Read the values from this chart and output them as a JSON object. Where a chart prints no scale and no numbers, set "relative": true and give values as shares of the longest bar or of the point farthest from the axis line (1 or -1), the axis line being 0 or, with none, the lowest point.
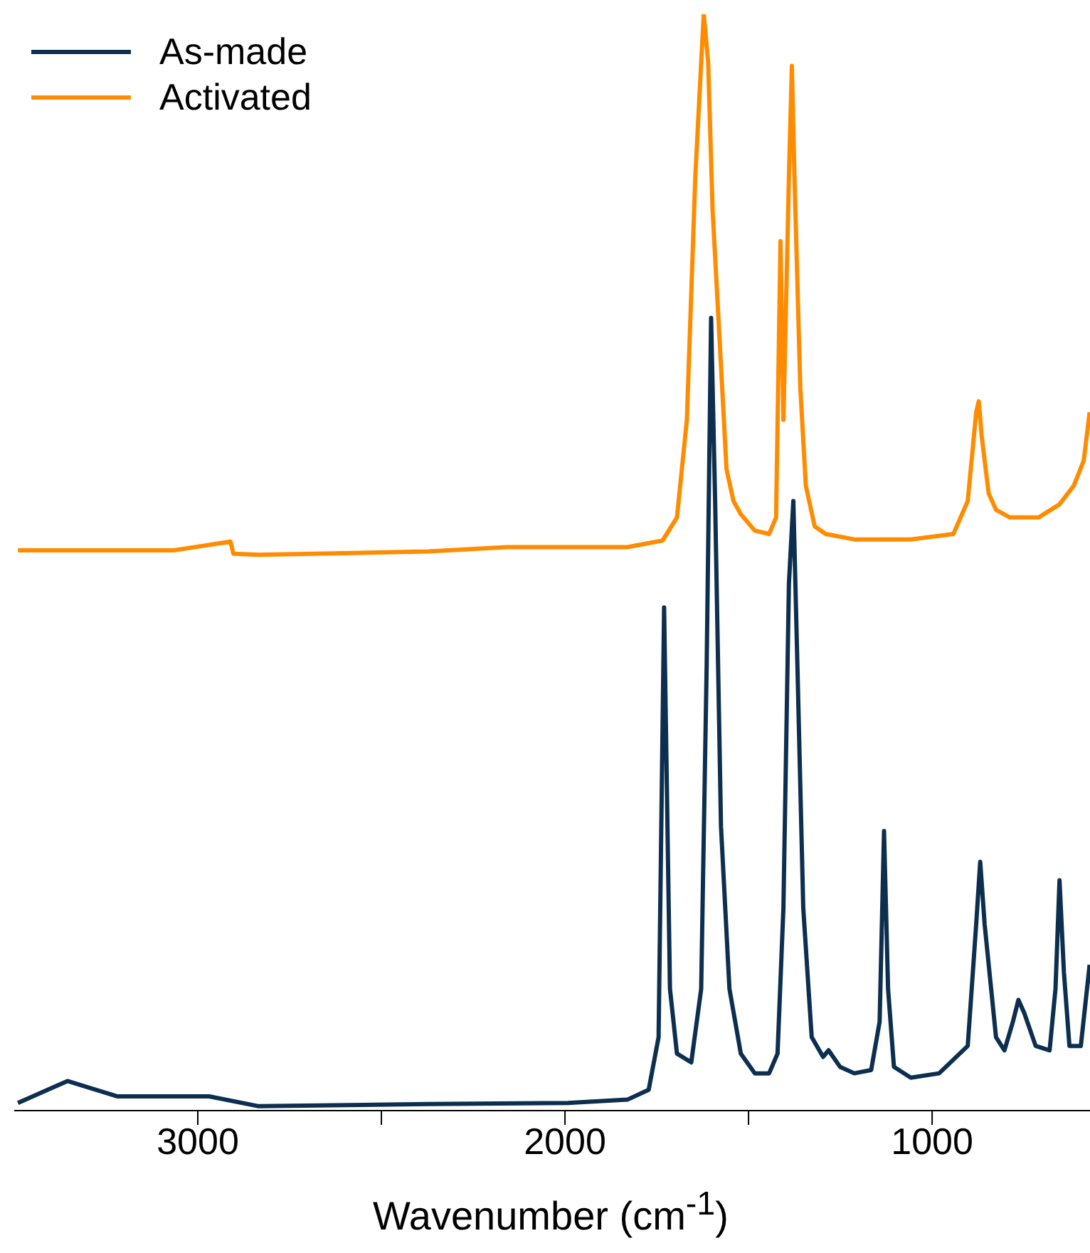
{
  "chart_data": {
    "type": "line",
    "xlabel": "Wavenumber (cm$^{-1}$)",
    "relative": true,
    "xlim": [
      3500,
      570
    ],
    "xticks": [
      3000,
      {
        "value": 2500,
        "label": null
      },
      2000,
      {
        "value": 1500,
        "label": null
      },
      1000
    ],
    "grid": false,
    "legend": "top left",
    "marker": "none",
    "line_style": "solid",
    "series": [
      {
        "name": "As-made",
        "color": "#0d2f4f",
        "x": [
          3490,
          3355,
          3220,
          2969,
          2834,
          2371,
          1992,
          1830,
          1772,
          1745,
          1730,
          1714,
          1695,
          1656,
          1629,
          1614,
          1602,
          1591,
          1575,
          1552,
          1521,
          1483,
          1444,
          1421,
          1405,
          1390,
          1378,
          1367,
          1351,
          1328,
          1297,
          1282,
          1251,
          1212,
          1166,
          1143,
          1131,
          1120,
          1104,
          1058,
          981,
          903,
          880,
          869,
          857,
          826,
          803,
          780,
          765,
          749,
          718,
          680,
          664,
          653,
          641,
          626,
          595,
          571
        ],
        "values": [
          0.007,
          0.027,
          0.013,
          0.013,
          0.004,
          0.006,
          0.007,
          0.01,
          0.019,
          0.067,
          0.459,
          0.111,
          0.052,
          0.044,
          0.111,
          0.407,
          0.723,
          0.556,
          0.259,
          0.111,
          0.052,
          0.034,
          0.034,
          0.052,
          0.185,
          0.481,
          0.556,
          0.407,
          0.185,
          0.067,
          0.049,
          0.055,
          0.04,
          0.034,
          0.037,
          0.081,
          0.255,
          0.111,
          0.04,
          0.03,
          0.034,
          0.059,
          0.17,
          0.227,
          0.17,
          0.067,
          0.055,
          0.081,
          0.101,
          0.089,
          0.059,
          0.055,
          0.111,
          0.21,
          0.126,
          0.059,
          0.059,
          0.133
        ]
      },
      {
        "name": "Activated",
        "color": "#ff8c00",
        "x": [
          3490,
          3066,
          2911,
          2903,
          2834,
          2371,
          2158,
          1985,
          1830,
          1734,
          1695,
          1668,
          1645,
          1629,
          1622,
          1610,
          1598,
          1579,
          1560,
          1541,
          1521,
          1483,
          1444,
          1425,
          1413,
          1405,
          1398,
          1390,
          1382,
          1375,
          1359,
          1344,
          1320,
          1290,
          1212,
          1058,
          942,
          903,
          880,
          873,
          865,
          846,
          826,
          788,
          710,
          653,
          614,
          587,
          571
        ],
        "values": [
          0.511,
          0.511,
          0.519,
          0.508,
          0.507,
          0.51,
          0.514,
          0.514,
          0.514,
          0.52,
          0.541,
          0.63,
          0.852,
          0.956,
          1,
          0.956,
          0.822,
          0.704,
          0.585,
          0.556,
          0.544,
          0.529,
          0.526,
          0.541,
          0.793,
          0.63,
          0.733,
          0.852,
          0.953,
          0.852,
          0.659,
          0.57,
          0.533,
          0.526,
          0.521,
          0.521,
          0.526,
          0.556,
          0.637,
          0.647,
          0.615,
          0.563,
          0.548,
          0.541,
          0.541,
          0.553,
          0.57,
          0.593,
          0.637
        ]
      }
    ]
  }
}
